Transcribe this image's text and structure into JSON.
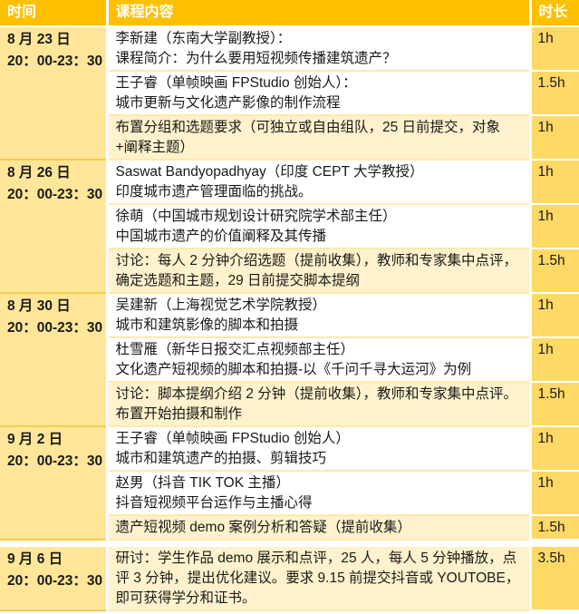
{
  "header": {
    "time": "时间",
    "content": "课程内容",
    "duration": "时长"
  },
  "colors": {
    "header_bg": "#FFC000",
    "header_text": "#FFFFFF",
    "time_column_bg": "#FFE699",
    "duration_column_bg": "#FFD966",
    "highlight_row_bg": "#FFF2CC",
    "lecture_row_bg": "#FFFFFF",
    "body_text": "#1A1A1A"
  },
  "groups": [
    {
      "date": "8 月 23 日",
      "time": "20：00-23：30",
      "gap_before": false,
      "sessions": [
        {
          "lines": [
            "李新建（东南大学副教授）：",
            "课程简介：为什么要用短视频传播建筑遗产？"
          ],
          "duration": "1h",
          "highlight": false
        },
        {
          "lines": [
            "王子睿（单帧映画 FPStudio 创始人）：",
            "城市更新与文化遗产影像的制作流程"
          ],
          "duration": "1.5h",
          "highlight": false
        },
        {
          "lines": [
            "布置分组和选题要求（可独立或自由组队，25 日前提交，对象+阐释主题）"
          ],
          "duration": "1h",
          "highlight": true
        }
      ]
    },
    {
      "date": "8 月 26 日",
      "time": "20：00-23：30",
      "gap_before": false,
      "sessions": [
        {
          "lines": [
            "Saswat Bandyopadhyay（印度 CEPT 大学教授）",
            "印度城市遗产管理面临的挑战。"
          ],
          "duration": "1h",
          "highlight": false
        },
        {
          "lines": [
            "徐萌（中国城市规划设计研究院学术部主任）",
            "中国城市遗产的价值阐释及其传播"
          ],
          "duration": "1h",
          "highlight": false
        },
        {
          "lines": [
            "讨论：每人 2 分钟介绍选题（提前收集），教师和专家集中点评，确定选题和主题，29 日前提交脚本提纲"
          ],
          "duration": "1.5h",
          "highlight": true
        }
      ]
    },
    {
      "date": "8 月 30 日",
      "time": "20：00-23：30",
      "gap_before": false,
      "sessions": [
        {
          "lines": [
            "吴建新（上海视觉艺术学院教授）",
            "城市和建筑影像的脚本和拍摄"
          ],
          "duration": "1h",
          "highlight": false
        },
        {
          "lines": [
            "杜雪雁（新华日报交汇点视频部主任）",
            "文化遗产短视频的脚本和拍摄-以《千问千寻大运河》为例"
          ],
          "duration": "1h",
          "highlight": false
        },
        {
          "lines": [
            "讨论：脚本提纲介绍 2 分钟（提前收集），教师和专家集中点评。布置开始拍摄和制作"
          ],
          "duration": "1.5h",
          "highlight": true
        }
      ]
    },
    {
      "date": "9 月 2 日",
      "time": "20：00-23：30",
      "gap_before": false,
      "sessions": [
        {
          "lines": [
            "王子睿（单帧映画 FPStudio 创始人）",
            "城市和建筑遗产的拍摄、剪辑技巧"
          ],
          "duration": "1h",
          "highlight": false
        },
        {
          "lines": [
            "赵男（抖音 TIK TOK 主播）",
            "抖音短视频平台运作与主播心得"
          ],
          "duration": "1h",
          "highlight": false
        },
        {
          "lines": [
            "遗产短视频 demo 案例分析和答疑（提前收集）"
          ],
          "duration": "1.5h",
          "highlight": true
        }
      ]
    },
    {
      "date": "9 月 6 日",
      "time": "20：00-23：30",
      "gap_before": true,
      "sessions": [
        {
          "lines": [
            "研讨：学生作品 demo 展示和点评，25 人，每人 5 分钟播放，点评 3 分钟，提出优化建议。要求 9.15 前提交抖音或 YOUTOBE，即可获得学分和证书。"
          ],
          "duration": "3.5h",
          "highlight": true
        }
      ]
    }
  ]
}
